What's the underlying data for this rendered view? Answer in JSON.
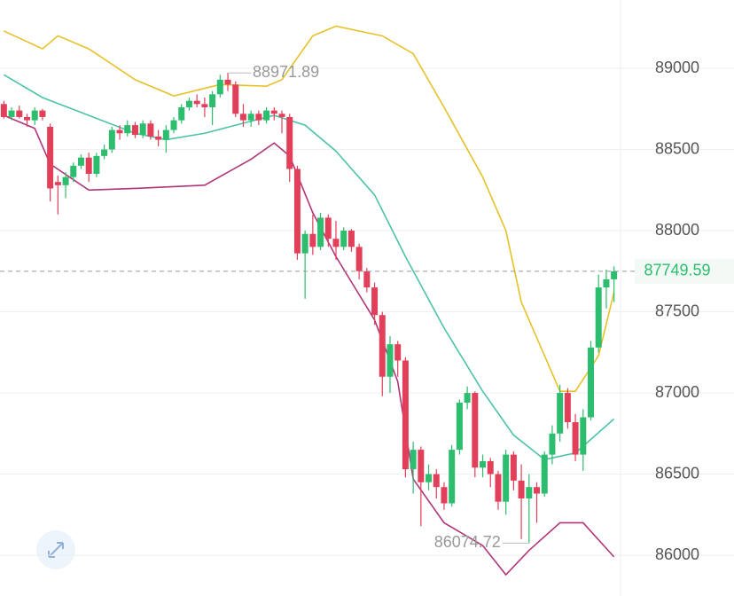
{
  "chart_data": {
    "type": "candlestick",
    "open": [
      88780,
      88700,
      88740,
      88700,
      88680,
      88740,
      88640,
      88300,
      88280,
      88330,
      88400,
      88450,
      88350,
      88460,
      88500,
      88620,
      88600,
      88650,
      88590,
      88660,
      88580,
      88560,
      88620,
      88680,
      88760,
      88800,
      88780,
      88760,
      88840,
      88930,
      88900,
      88720,
      88680,
      88720,
      88680,
      88740,
      88720,
      88700,
      88380,
      87860,
      87980,
      87900,
      88080,
      87950,
      87900,
      88000,
      87900,
      87750,
      87650,
      87480,
      87100,
      87300,
      87200,
      86530,
      86650,
      86450,
      86500,
      86420,
      86320,
      86650,
      86940,
      87000,
      86540,
      86580,
      86500,
      86330,
      86620,
      86460,
      86350,
      86420,
      86380,
      86620,
      86750,
      87000,
      86820,
      86620,
      86850,
      87280,
      87650,
      87700
    ],
    "high": [
      88800,
      88760,
      88770,
      88720,
      88760,
      88750,
      88660,
      88340,
      88360,
      88420,
      88470,
      88480,
      88480,
      88530,
      88640,
      88650,
      88680,
      88670,
      88680,
      88680,
      88620,
      88650,
      88700,
      88780,
      88820,
      88840,
      88820,
      88860,
      88960,
      88971.89,
      88920,
      88780,
      88740,
      88740,
      88760,
      88760,
      88740,
      88720,
      88400,
      88000,
      88100,
      88110,
      88100,
      88060,
      88020,
      88010,
      87920,
      87770,
      87680,
      87500,
      87350,
      87320,
      87220,
      86700,
      86670,
      86560,
      86530,
      86450,
      86680,
      86960,
      87040,
      87010,
      86620,
      86600,
      86520,
      86650,
      86640,
      86560,
      86500,
      86450,
      86640,
      86800,
      87050,
      87030,
      86870,
      86900,
      87320,
      87730,
      87760,
      87780
    ],
    "low": [
      88690,
      88680,
      88690,
      88640,
      88650,
      88680,
      88180,
      88100,
      88200,
      88300,
      88380,
      88300,
      88330,
      88440,
      88480,
      88560,
      88580,
      88570,
      88570,
      88560,
      88520,
      88480,
      88600,
      88660,
      88740,
      88760,
      88700,
      88650,
      88820,
      88860,
      88700,
      88640,
      88640,
      88650,
      88660,
      88680,
      88600,
      88300,
      87820,
      87580,
      87850,
      87880,
      87900,
      87820,
      87880,
      87870,
      87700,
      87620,
      87420,
      86980,
      87000,
      87100,
      86480,
      86380,
      86180,
      86400,
      86350,
      86280,
      86300,
      86620,
      86900,
      86480,
      86480,
      86420,
      86280,
      86250,
      86400,
      86100,
      86074.72,
      86200,
      86360,
      86560,
      86700,
      86780,
      86580,
      86520,
      86830,
      87250,
      87520,
      87560
    ],
    "close": [
      88700,
      88740,
      88700,
      88680,
      88740,
      88700,
      88260,
      88280,
      88330,
      88400,
      88450,
      88350,
      88460,
      88500,
      88620,
      88600,
      88650,
      88590,
      88660,
      88580,
      88560,
      88620,
      88680,
      88760,
      88800,
      88780,
      88760,
      88840,
      88930,
      88900,
      88720,
      88680,
      88720,
      88680,
      88740,
      88720,
      88700,
      88380,
      87860,
      87980,
      87900,
      88080,
      87950,
      87900,
      88000,
      87900,
      87750,
      87650,
      87480,
      87100,
      87300,
      87200,
      86530,
      86650,
      86450,
      86500,
      86420,
      86320,
      86650,
      86940,
      87000,
      86540,
      86580,
      86500,
      86330,
      86620,
      86460,
      86350,
      86420,
      86380,
      86620,
      86750,
      87000,
      86820,
      86620,
      86850,
      87280,
      87650,
      87700,
      87749.59
    ],
    "up_color": "#2dbd6e",
    "down_color": "#e23f5a",
    "series": [
      {
        "color": "#e6c229",
        "x": [
          0,
          5,
          7,
          11,
          17,
          22,
          28,
          34,
          36,
          40,
          43,
          49,
          53,
          57,
          62,
          65,
          67,
          70,
          72,
          74,
          77,
          79
        ],
        "values": [
          89230,
          89120,
          89200,
          89120,
          88930,
          88830,
          88900,
          88890,
          88930,
          89200,
          89260,
          89200,
          89090,
          88760,
          88330,
          88000,
          87560,
          87230,
          87010,
          87010,
          87230,
          87620
        ]
      },
      {
        "color": "#4cc3a8",
        "x": [
          0,
          5,
          11,
          17,
          21,
          26,
          30,
          35,
          39,
          43,
          48,
          52,
          57,
          62,
          66,
          70,
          74,
          79
        ],
        "values": [
          88960,
          88820,
          88710,
          88600,
          88560,
          88600,
          88650,
          88710,
          88650,
          88490,
          88220,
          87840,
          87400,
          87010,
          86740,
          86590,
          86630,
          86840
        ]
      },
      {
        "color": "#b0357a",
        "x": [
          0,
          4,
          6,
          11,
          17,
          26,
          32,
          35,
          37,
          40,
          43,
          48,
          51,
          53,
          57,
          62,
          65,
          68,
          72,
          75,
          79
        ],
        "values": [
          88710,
          88630,
          88410,
          88250,
          88260,
          88280,
          88440,
          88540,
          88460,
          88110,
          87840,
          87450,
          87070,
          86470,
          86200,
          86060,
          85880,
          86030,
          86200,
          86200,
          85990
        ]
      }
    ],
    "ylim": [
      85749,
      89421
    ],
    "yticks": [
      86000,
      86500,
      87000,
      87500,
      88000,
      88500,
      89000
    ],
    "grid": true
  }
}
